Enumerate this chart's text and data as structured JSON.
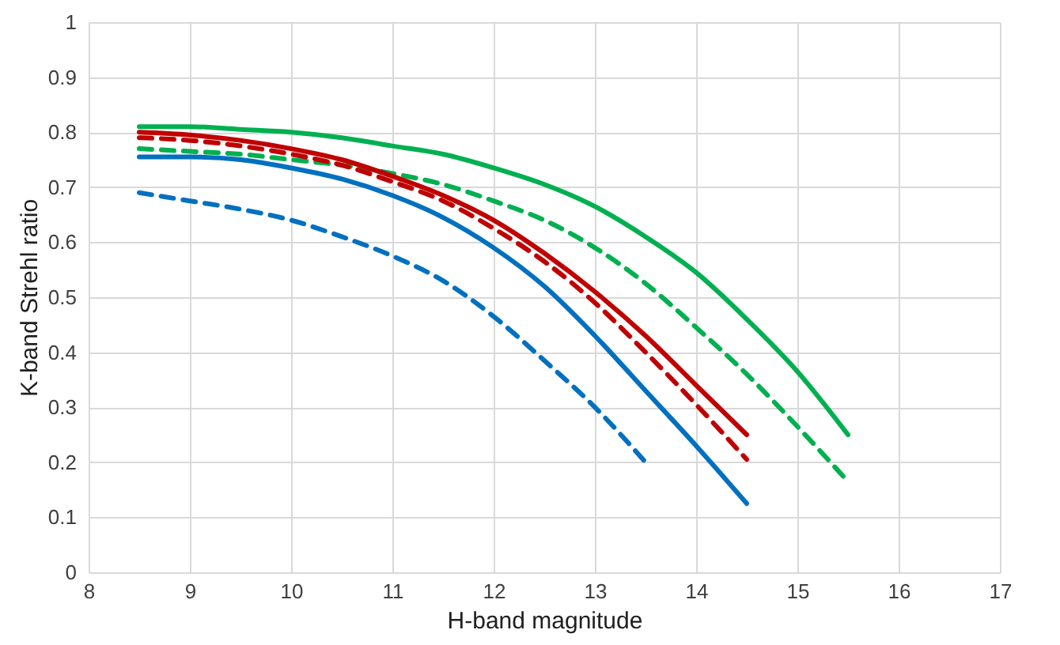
{
  "chart_data": {
    "type": "line",
    "xlabel": "H-band magnitude",
    "ylabel": "K-band Strehl ratio",
    "xlim": [
      8,
      17
    ],
    "xticks": [
      8,
      9,
      10,
      11,
      12,
      13,
      14,
      15,
      16,
      17
    ],
    "ylim": [
      0,
      1
    ],
    "yticks": [
      0,
      0.1,
      0.2,
      0.3,
      0.4,
      0.5,
      0.6,
      0.7,
      0.8,
      0.9,
      1
    ],
    "grid": true,
    "legend": false,
    "marker": "none",
    "series": [
      {
        "color": "#00b050",
        "line_style": "solid",
        "x": [
          8.5,
          9,
          9.5,
          10,
          10.5,
          11,
          11.5,
          12,
          12.5,
          13,
          13.5,
          14,
          14.5,
          15,
          15.5
        ],
        "values": [
          0.81,
          0.81,
          0.805,
          0.8,
          0.79,
          0.775,
          0.76,
          0.735,
          0.705,
          0.665,
          0.61,
          0.545,
          0.46,
          0.365,
          0.25
        ]
      },
      {
        "color": "#00b050",
        "line_style": "dashed",
        "x": [
          8.5,
          9,
          9.5,
          10,
          10.5,
          11,
          11.5,
          12,
          12.5,
          13,
          13.5,
          14,
          14.5,
          15,
          15.5
        ],
        "values": [
          0.77,
          0.765,
          0.76,
          0.75,
          0.74,
          0.725,
          0.705,
          0.675,
          0.64,
          0.59,
          0.525,
          0.445,
          0.36,
          0.265,
          0.165
        ]
      },
      {
        "color": "#c00000",
        "line_style": "solid",
        "x": [
          8.5,
          9,
          9.5,
          10,
          10.5,
          11,
          11.5,
          12,
          12.5,
          13,
          13.5,
          14,
          14.5
        ],
        "values": [
          0.8,
          0.795,
          0.785,
          0.77,
          0.75,
          0.72,
          0.685,
          0.64,
          0.58,
          0.51,
          0.43,
          0.34,
          0.25
        ]
      },
      {
        "color": "#c00000",
        "line_style": "dashed",
        "x": [
          8.5,
          9,
          9.5,
          10,
          10.5,
          11,
          11.5,
          12,
          12.5,
          13,
          13.5,
          14,
          14.5
        ],
        "values": [
          0.79,
          0.785,
          0.775,
          0.76,
          0.74,
          0.71,
          0.675,
          0.625,
          0.565,
          0.49,
          0.4,
          0.305,
          0.205
        ]
      },
      {
        "color": "#0070c0",
        "line_style": "solid",
        "x": [
          8.5,
          9,
          9.5,
          10,
          10.5,
          11,
          11.5,
          12,
          12.5,
          13,
          13.5,
          14,
          14.5
        ],
        "values": [
          0.755,
          0.755,
          0.75,
          0.735,
          0.715,
          0.685,
          0.645,
          0.59,
          0.52,
          0.43,
          0.33,
          0.23,
          0.125
        ]
      },
      {
        "color": "#0070c0",
        "line_style": "dashed",
        "x": [
          8.5,
          9,
          9.5,
          10,
          10.5,
          11,
          11.5,
          12,
          12.5,
          13,
          13.5
        ],
        "values": [
          0.69,
          0.675,
          0.66,
          0.64,
          0.61,
          0.575,
          0.53,
          0.465,
          0.385,
          0.3,
          0.2
        ]
      }
    ]
  }
}
